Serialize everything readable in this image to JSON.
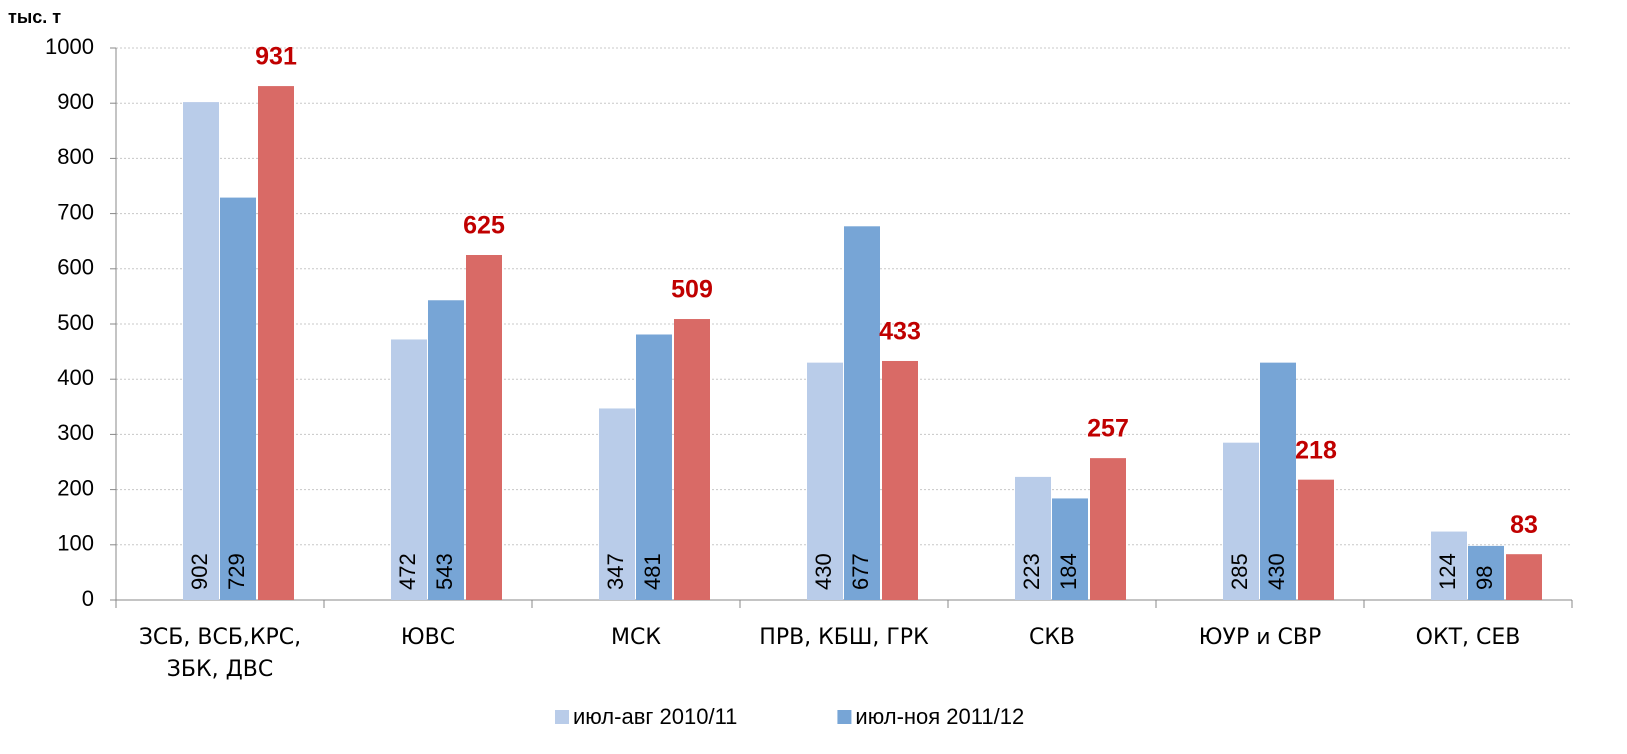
{
  "chart_data": {
    "type": "bar",
    "y_label": "тыс. т",
    "categories": [
      "ЗСБ, ВСБ,КРС, ЗБК, ДВС",
      "ЮВС",
      "МСК",
      "ПРВ, КБШ, ГРК",
      "СКВ",
      "ЮУР и СВР",
      "ОКТ, СЕВ"
    ],
    "series": [
      {
        "name": "июл-авг 2010/11",
        "color": "#b9cce9",
        "values": [
          902,
          472,
          347,
          430,
          223,
          285,
          124
        ]
      },
      {
        "name": "июл-ноя 2011/12",
        "color": "#77a5d6",
        "values": [
          729,
          543,
          481,
          677,
          184,
          430,
          98
        ]
      },
      {
        "color": "#d96a66",
        "values": [
          931,
          625,
          509,
          433,
          257,
          218,
          83
        ]
      }
    ],
    "ylim": [
      0,
      1000
    ],
    "yticks": [
      0,
      100,
      200,
      300,
      400,
      500,
      600,
      700,
      800,
      900,
      1000
    ],
    "grid": true
  }
}
